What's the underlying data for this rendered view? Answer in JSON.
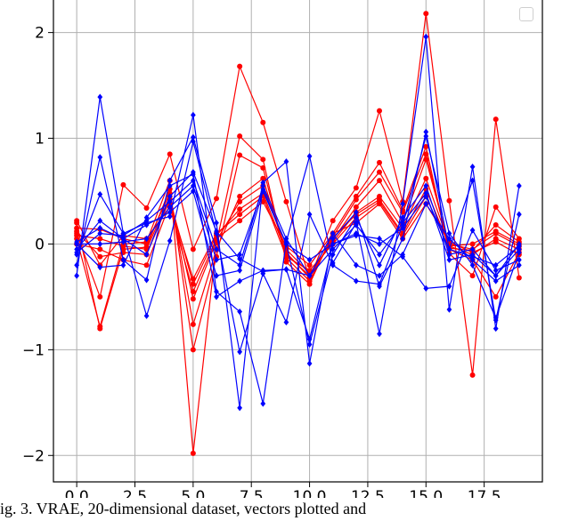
{
  "caption": "ig. 3. VRAE, 20-dimensional dataset, vectors plotted and",
  "chart_data": {
    "type": "line",
    "xlim": [
      -1.0,
      20.0
    ],
    "ylim": [
      -2.25,
      2.35
    ],
    "xticks": [
      0.0,
      2.5,
      5.0,
      7.5,
      10.0,
      12.5,
      15.0,
      17.5
    ],
    "xtick_labels": [
      "0.0",
      "2.5",
      "5.0",
      "7.5",
      "10.0",
      "12.5",
      "15.0",
      "17.5"
    ],
    "yticks": [
      -2,
      -1,
      0,
      1,
      2
    ],
    "ytick_labels": [
      "−2",
      "−1",
      "0",
      "1",
      "2"
    ],
    "grid": true,
    "legend": "top-right",
    "x": [
      0,
      1,
      2,
      3,
      4,
      5,
      6,
      7,
      8,
      9,
      10,
      11,
      12,
      13,
      14,
      15,
      16,
      17,
      18,
      19
    ],
    "series": [
      {
        "color": "#ff0000",
        "marker": "circle",
        "values": [
          0.1,
          -0.5,
          0.56,
          0.34,
          0.85,
          -0.05,
          0.43,
          1.68,
          1.15,
          0.4,
          -0.33,
          0.22,
          0.53,
          1.26,
          0.4,
          2.18,
          0.41,
          -1.24,
          1.18,
          -0.32
        ]
      },
      {
        "color": "#ff0000",
        "marker": "circle",
        "values": [
          0.05,
          -0.78,
          0.0,
          0.02,
          0.6,
          -1.98,
          0.01,
          1.02,
          0.8,
          -0.17,
          -0.38,
          0.1,
          0.45,
          0.77,
          0.32,
          0.92,
          -0.09,
          -0.3,
          0.35,
          0.05
        ]
      },
      {
        "color": "#ff0000",
        "marker": "circle",
        "values": [
          0.2,
          -0.8,
          -0.05,
          -0.03,
          0.52,
          -1.0,
          -0.12,
          0.84,
          0.72,
          -0.13,
          -0.35,
          0.07,
          0.42,
          0.68,
          0.3,
          0.85,
          -0.04,
          -0.06,
          0.18,
          0.02
        ]
      },
      {
        "color": "#ff0000",
        "marker": "circle",
        "values": [
          0.15,
          0.14,
          0.05,
          0.0,
          0.48,
          -0.76,
          -0.05,
          0.45,
          0.62,
          -0.1,
          -0.3,
          0.04,
          0.35,
          0.6,
          0.2,
          0.8,
          -0.02,
          0.0,
          0.12,
          0.0
        ]
      },
      {
        "color": "#ff0000",
        "marker": "circle",
        "values": [
          0.08,
          0.05,
          -0.02,
          -0.05,
          0.45,
          -0.52,
          0.03,
          0.4,
          0.55,
          -0.05,
          -0.28,
          0.02,
          0.3,
          0.45,
          0.15,
          0.62,
          0.0,
          -0.05,
          0.1,
          -0.02
        ]
      },
      {
        "color": "#ff0000",
        "marker": "circle",
        "values": [
          0.12,
          -0.12,
          -0.08,
          -0.1,
          0.42,
          -0.38,
          0.08,
          0.33,
          0.48,
          -0.08,
          -0.32,
          0.06,
          0.28,
          0.42,
          0.1,
          0.52,
          -0.02,
          -0.1,
          0.05,
          -0.05
        ]
      },
      {
        "color": "#ff0000",
        "marker": "circle",
        "values": [
          0.0,
          -0.05,
          -0.15,
          -0.2,
          0.38,
          -0.33,
          0.1,
          0.28,
          0.45,
          -0.12,
          -0.25,
          0.0,
          0.25,
          0.4,
          0.08,
          0.45,
          -0.05,
          -0.15,
          -0.5,
          -0.08
        ]
      },
      {
        "color": "#ff0000",
        "marker": "circle",
        "values": [
          0.22,
          -0.2,
          0.08,
          0.05,
          0.35,
          -0.45,
          0.05,
          0.22,
          0.4,
          -0.02,
          -0.2,
          0.1,
          0.2,
          0.38,
          0.05,
          0.38,
          0.02,
          -0.08,
          0.02,
          -0.1
        ]
      },
      {
        "color": "#0000ff",
        "marker": "diamond",
        "values": [
          -0.3,
          1.39,
          0.1,
          0.2,
          0.26,
          1.22,
          -0.45,
          -0.64,
          -1.51,
          0.02,
          0.83,
          -0.18,
          0.2,
          -0.85,
          0.38,
          1.96,
          -0.62,
          0.73,
          -0.8,
          0.55
        ]
      },
      {
        "color": "#0000ff",
        "marker": "diamond",
        "values": [
          -0.2,
          0.82,
          -0.15,
          -0.34,
          0.6,
          1.01,
          0.2,
          -1.55,
          0.58,
          0.78,
          -1.13,
          0.05,
          0.3,
          -0.4,
          0.05,
          1.06,
          -0.05,
          0.6,
          -0.72,
          0.28
        ]
      },
      {
        "color": "#0000ff",
        "marker": "diamond",
        "values": [
          -0.1,
          0.47,
          0.1,
          -0.68,
          0.03,
          0.97,
          0.1,
          -1.02,
          -0.28,
          -0.74,
          0.28,
          -0.2,
          -0.35,
          -0.38,
          0.18,
          1.02,
          0.1,
          -0.2,
          -0.7,
          -0.08
        ]
      },
      {
        "color": "#0000ff",
        "marker": "diamond",
        "values": [
          0.0,
          -0.22,
          -0.2,
          0.25,
          0.55,
          0.66,
          -0.5,
          -0.35,
          -0.25,
          -0.24,
          -0.9,
          0.0,
          0.08,
          0.05,
          -0.12,
          -0.42,
          -0.4,
          0.13,
          -0.25,
          -0.15
        ]
      },
      {
        "color": "#0000ff",
        "marker": "diamond",
        "values": [
          0.02,
          0.15,
          0.05,
          -0.1,
          0.45,
          0.68,
          0.12,
          -0.14,
          -0.26,
          -0.24,
          -0.3,
          0.1,
          -0.2,
          -0.3,
          -0.1,
          0.38,
          0.05,
          -0.15,
          -0.35,
          -0.2
        ]
      },
      {
        "color": "#0000ff",
        "marker": "diamond",
        "values": [
          -0.05,
          0.22,
          0.05,
          0.18,
          0.3,
          0.5,
          -0.3,
          -0.25,
          0.5,
          0.0,
          -0.95,
          -0.1,
          0.25,
          -0.2,
          0.25,
          0.55,
          -0.1,
          -0.05,
          -0.3,
          -0.05
        ]
      },
      {
        "color": "#0000ff",
        "marker": "diamond",
        "values": [
          -0.08,
          0.1,
          0.08,
          0.22,
          0.4,
          0.6,
          -0.05,
          -0.2,
          0.55,
          0.05,
          -0.3,
          -0.05,
          0.18,
          -0.1,
          0.2,
          0.48,
          -0.15,
          -0.1,
          -0.3,
          0.0
        ]
      },
      {
        "color": "#0000ff",
        "marker": "diamond",
        "values": [
          0.0,
          0.0,
          0.02,
          0.05,
          0.35,
          0.55,
          -0.15,
          -0.1,
          0.52,
          0.0,
          -0.15,
          0.0,
          0.1,
          0.0,
          0.15,
          0.45,
          -0.05,
          -0.12,
          -0.2,
          -0.02
        ]
      }
    ]
  }
}
